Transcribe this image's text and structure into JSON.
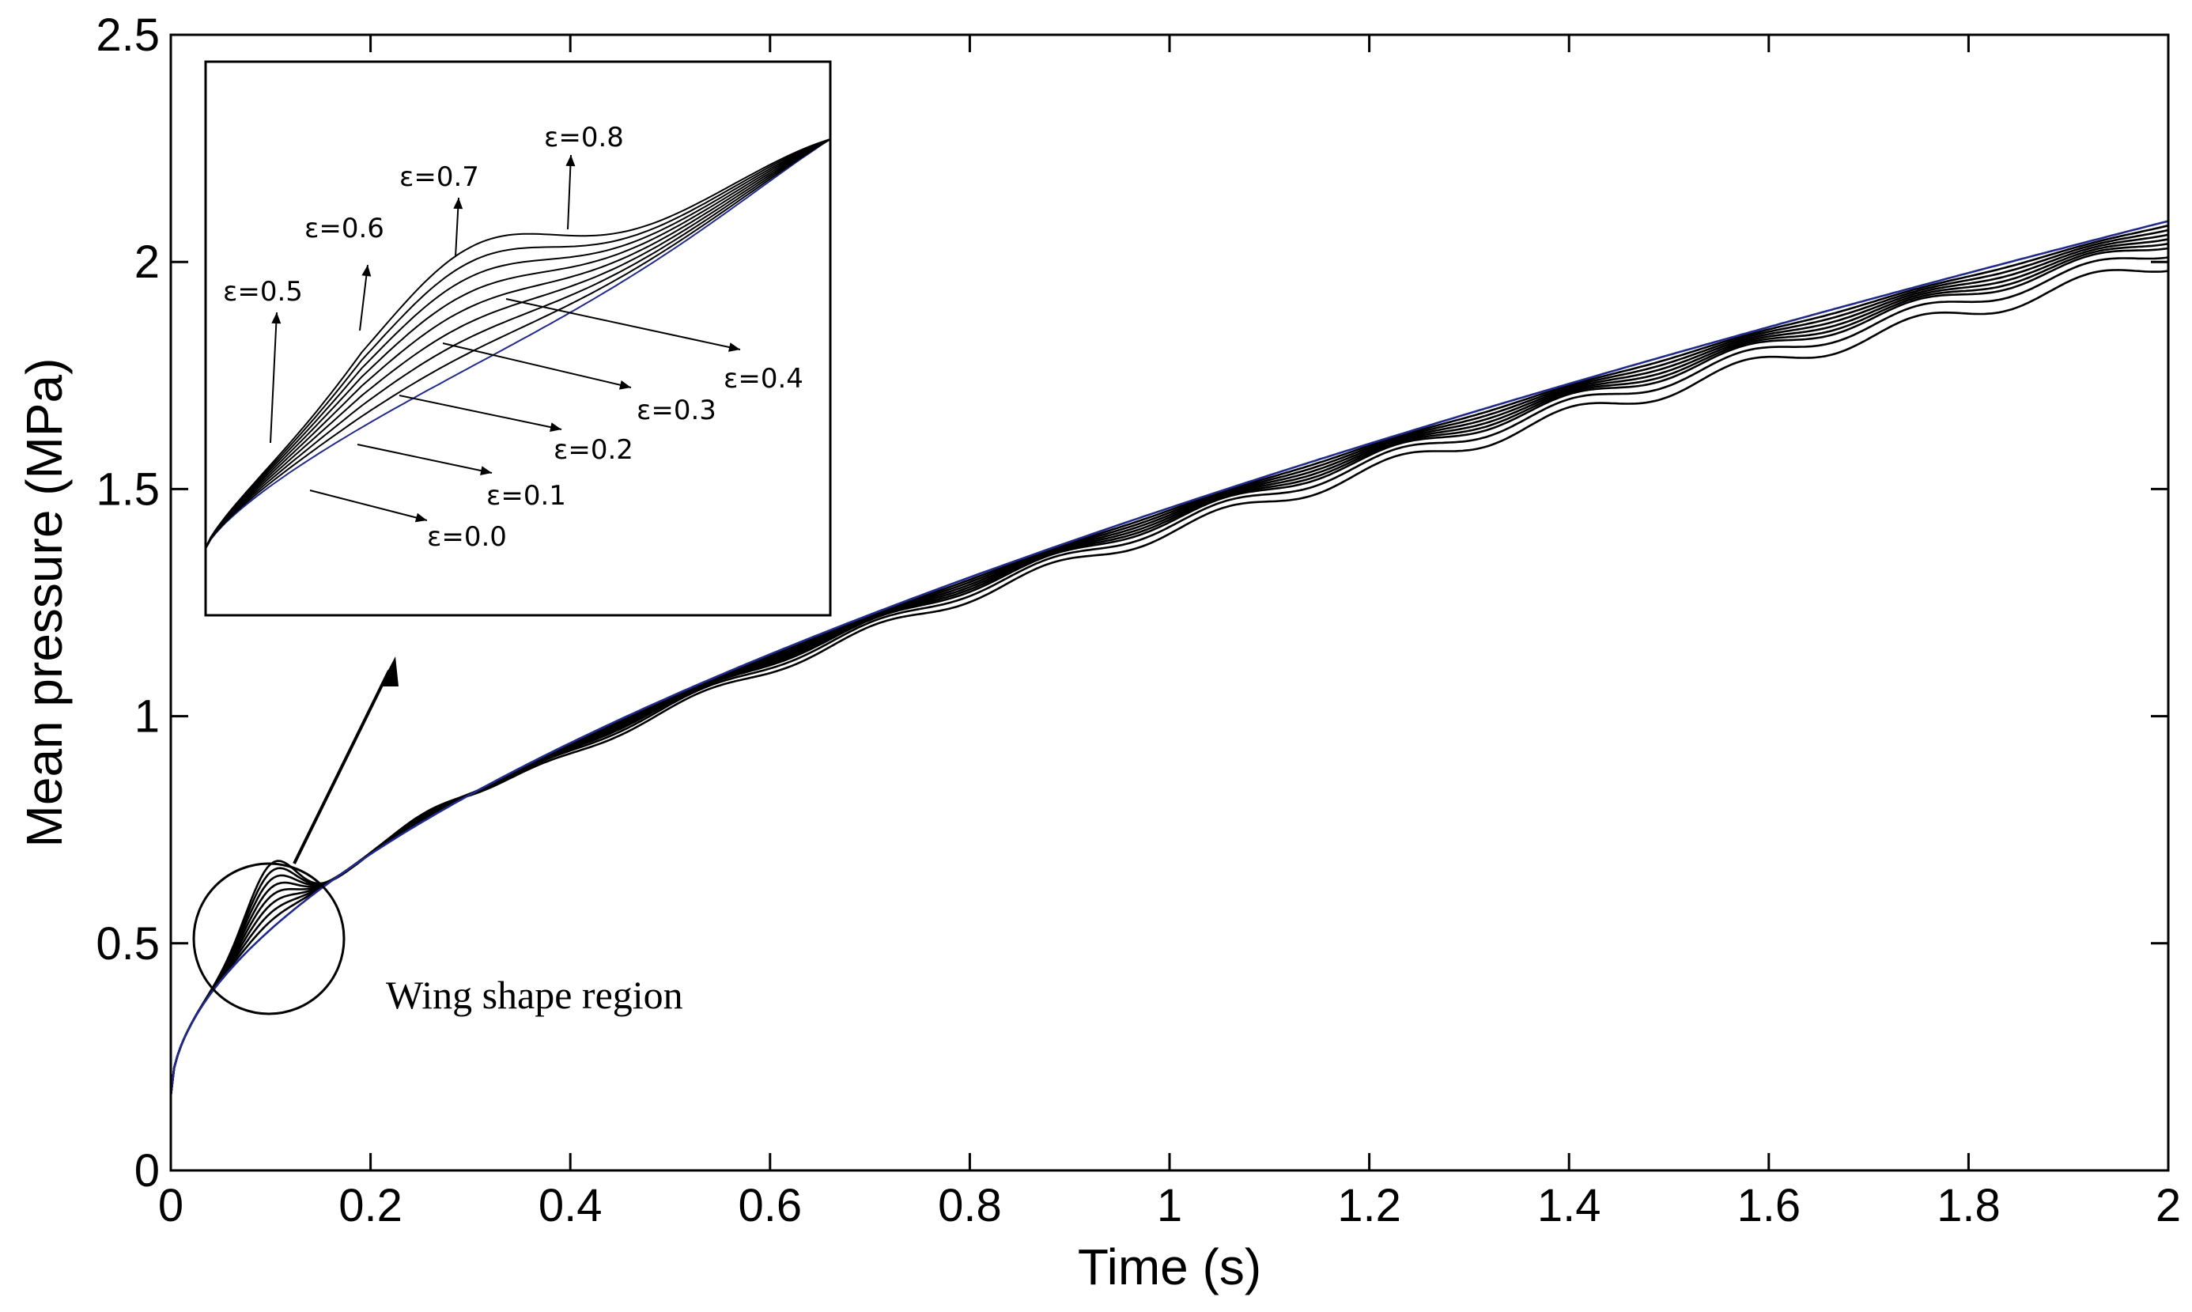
{
  "chart_data": {
    "type": "line",
    "title": "",
    "xlabel": "Time (s)",
    "ylabel": "Mean pressure (MPa)",
    "xlim": [
      0,
      2
    ],
    "ylim": [
      0,
      2.5
    ],
    "xticks": [
      "0",
      "0.2",
      "0.4",
      "0.6",
      "0.8",
      "1",
      "1.2",
      "1.4",
      "1.6",
      "1.8",
      "2"
    ],
    "yticks": [
      "0",
      "0.5",
      "1",
      "1.5",
      "2",
      "2.5"
    ],
    "grid": false,
    "legend": "none",
    "series_colors": {
      "eps_0.0": "#1f2a8c",
      "others": "#000000"
    },
    "series": [
      {
        "name": "ε=0.0",
        "epsilon": 0.0,
        "final_value": 2.09
      },
      {
        "name": "ε=0.1",
        "epsilon": 0.1,
        "final_value": 2.08
      },
      {
        "name": "ε=0.2",
        "epsilon": 0.2,
        "final_value": 2.07
      },
      {
        "name": "ε=0.3",
        "epsilon": 0.3,
        "final_value": 2.06
      },
      {
        "name": "ε=0.4",
        "epsilon": 0.4,
        "final_value": 2.05
      },
      {
        "name": "ε=0.5",
        "epsilon": 0.5,
        "final_value": 2.04
      },
      {
        "name": "ε=0.6",
        "epsilon": 0.6,
        "final_value": 2.03
      },
      {
        "name": "ε=0.7",
        "epsilon": 0.7,
        "final_value": 2.01
      },
      {
        "name": "ε=0.8",
        "epsilon": 0.8,
        "final_value": 1.98
      }
    ],
    "annotations": {
      "region_label": "Wing shape region",
      "region_center": {
        "x": 0.1,
        "y": 0.52
      }
    },
    "inset": {
      "description_labels": [
        "ε=0.8",
        "ε=0.7",
        "ε=0.6",
        "ε=0.5",
        "ε=0.4",
        "ε=0.3",
        "ε=0.2",
        "ε=0.1",
        "ε=0.0"
      ]
    }
  }
}
